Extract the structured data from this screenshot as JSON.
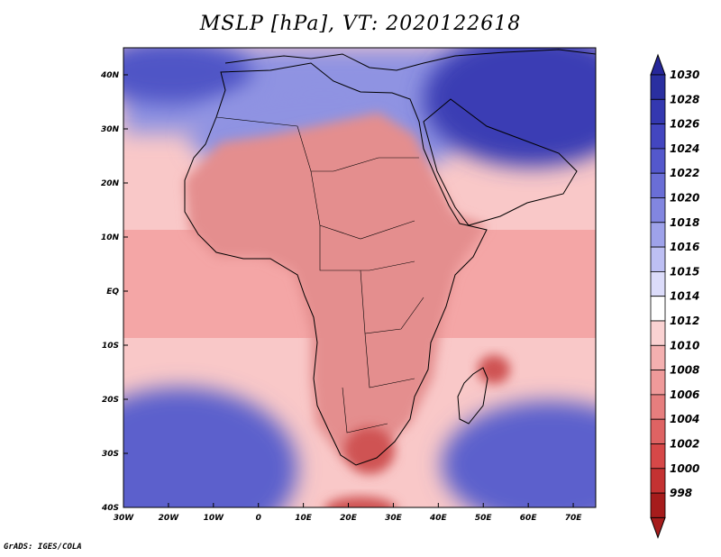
{
  "title": "MSLP [hPa], VT: 2020122618",
  "credit": "GrADS: IGES/COLA",
  "map": {
    "lon_labels": [
      "30W",
      "20W",
      "10W",
      "0",
      "10E",
      "20E",
      "30E",
      "40E",
      "50E",
      "60E",
      "70E"
    ],
    "lat_labels": [
      "40N",
      "30N",
      "20N",
      "10N",
      "EQ",
      "10S",
      "20S",
      "30S",
      "40S"
    ],
    "lon_range": [
      -30,
      75
    ],
    "lat_range": [
      -40,
      45
    ]
  },
  "colorbar": {
    "levels": [
      "1030",
      "1028",
      "1026",
      "1024",
      "1022",
      "1020",
      "1018",
      "1016",
      "1015",
      "1014",
      "1012",
      "1010",
      "1008",
      "1006",
      "1004",
      "1002",
      "1000",
      "998"
    ],
    "colors": [
      "#2a2fa0",
      "#3438b0",
      "#4346c0",
      "#5458cc",
      "#6a6ed6",
      "#8286e0",
      "#9ea2ea",
      "#bdbff3",
      "#dcdcfa",
      "#ffffff",
      "#fad2d2",
      "#f4b0b0",
      "#ef9a9a",
      "#e67e7e",
      "#de6363",
      "#d64848",
      "#c43232",
      "#a61c1c"
    ],
    "arrow_top_color": "#26279a",
    "arrow_bottom_color": "#a61c1c"
  },
  "palette": {
    "ocean_low": "#f4a6a6",
    "ocean_mid": "#f9c8c8",
    "ocean_high_blue": "#5054c6",
    "africa": "#e48e8e",
    "sahara_blue": "#8f93e2",
    "arabia_blue": "#3a3db4",
    "south_high": "#5c60cc",
    "low_dark": "#cf5252"
  }
}
